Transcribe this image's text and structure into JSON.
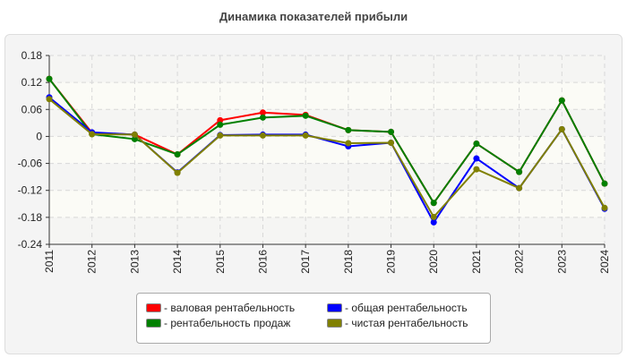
{
  "chart_data": {
    "type": "line",
    "title": "Динамика показателей прибыли",
    "categories": [
      "2011",
      "2012",
      "2013",
      "2014",
      "2015",
      "2016",
      "2017",
      "2018",
      "2019",
      "2020",
      "2021",
      "2022",
      "2023",
      "2024"
    ],
    "ylim": [
      -0.24,
      0.18
    ],
    "yticks": [
      "0.18",
      "0.12",
      "0.06",
      "0",
      "-0.06",
      "-0.12",
      "-0.18",
      "-0.24"
    ],
    "grid": true,
    "legend_position": "bottom",
    "series": [
      {
        "name": "- валовая рентабельность",
        "color": "#ff0000",
        "values": [
          0.128,
          0.008,
          0.004,
          -0.04,
          0.036,
          0.053,
          0.048,
          0.014,
          0.01,
          -0.148,
          -0.016,
          -0.079,
          0.08,
          -0.105
        ]
      },
      {
        "name": "- рентабельность продаж",
        "color": "#008000",
        "values": [
          0.128,
          0.005,
          -0.006,
          -0.04,
          0.026,
          0.042,
          0.046,
          0.014,
          0.01,
          -0.148,
          -0.016,
          -0.079,
          0.08,
          -0.105
        ]
      },
      {
        "name": "- общая рентабельность",
        "color": "#0000ff",
        "values": [
          0.087,
          0.009,
          0.004,
          -0.08,
          0.003,
          0.004,
          0.004,
          -0.022,
          -0.014,
          -0.191,
          -0.049,
          -0.115,
          0.016,
          -0.161
        ]
      },
      {
        "name": "- чистая рентабельность",
        "color": "#808000",
        "values": [
          0.083,
          0.005,
          0.004,
          -0.081,
          0.002,
          0.002,
          0.002,
          -0.015,
          -0.014,
          -0.179,
          -0.073,
          -0.115,
          0.016,
          -0.159
        ]
      }
    ]
  }
}
